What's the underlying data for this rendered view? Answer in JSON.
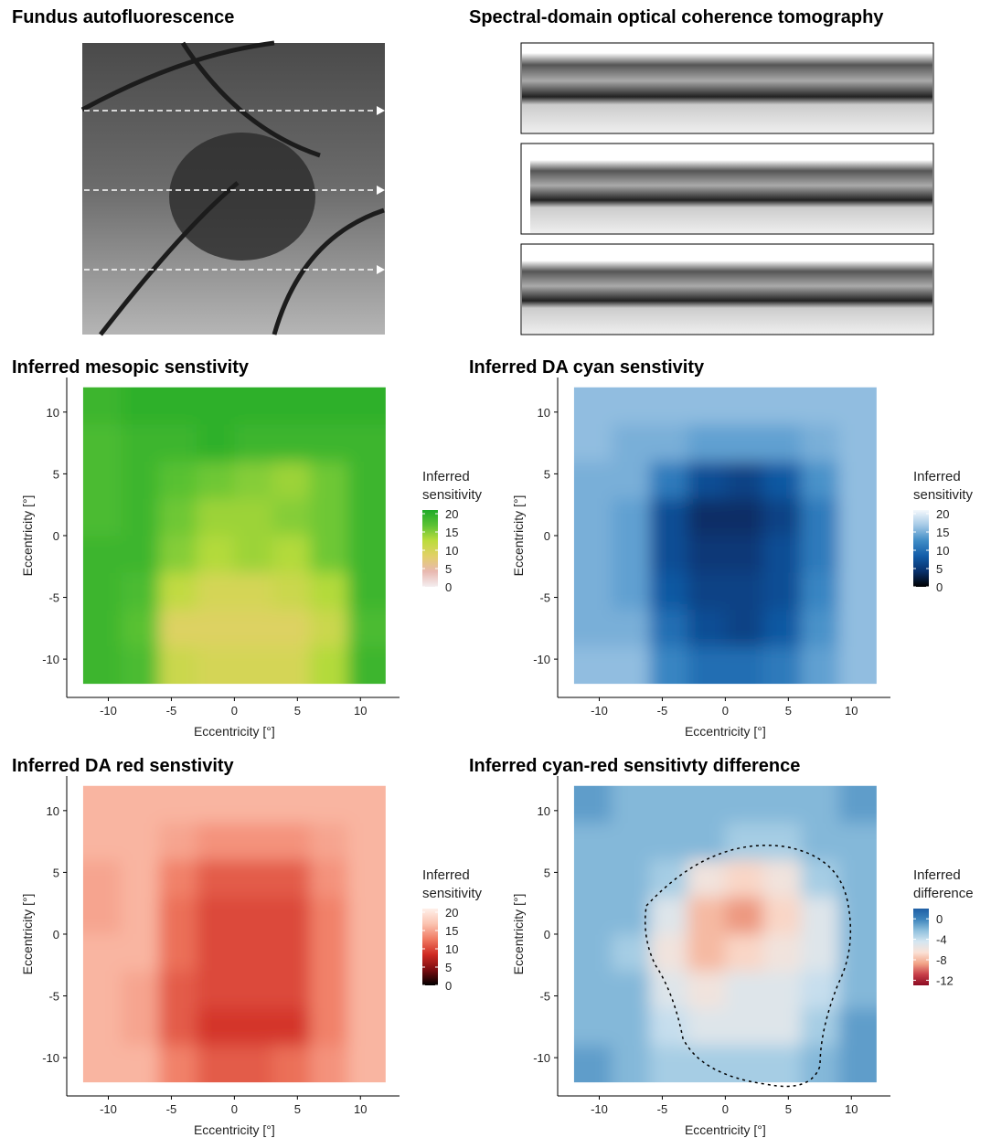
{
  "images": {
    "fundus_title": "Fundus autofluorescence",
    "oct_title": "Spectral-domain optical coherence tomography"
  },
  "chart_data": [
    {
      "type": "heatmap",
      "title": "Inferred mesopic senstivity",
      "xlabel": "Eccentricity [°]",
      "ylabel": "Eccentricity [°]",
      "xlim": [
        -13.3,
        13.1
      ],
      "ylim": [
        -13.1,
        12.8
      ],
      "xticks": [
        -10,
        -5,
        0,
        5,
        10
      ],
      "yticks": [
        -10,
        -5,
        0,
        5,
        10
      ],
      "x": [
        -10.5,
        -7.5,
        -4.5,
        -1.5,
        1.5,
        4.5,
        7.5,
        10.5
      ],
      "y": [
        10.5,
        7.5,
        4.5,
        1.5,
        -1.5,
        -4.5,
        -7.5,
        -10.5
      ],
      "z": [
        [
          19,
          20,
          20,
          20,
          20,
          20,
          20,
          20
        ],
        [
          18,
          19,
          19,
          20,
          19,
          19,
          19,
          19
        ],
        [
          18,
          19,
          17,
          16,
          15,
          14,
          16,
          19
        ],
        [
          18,
          19,
          16,
          14,
          14,
          15,
          16,
          19
        ],
        [
          19,
          19,
          15,
          13,
          14,
          13,
          16,
          19
        ],
        [
          19,
          18,
          12,
          10,
          10,
          11,
          13,
          19
        ],
        [
          19,
          17,
          9,
          9,
          9,
          9,
          11,
          18
        ],
        [
          19,
          18,
          11,
          10,
          10,
          10,
          13,
          19
        ]
      ],
      "legend_title": "Inferred sensitivity",
      "clim": [
        0,
        21
      ],
      "cticks": [
        0,
        5,
        10,
        15,
        20
      ],
      "colors": [
        "#f4eef0",
        "#e8b8b0",
        "#e2d068",
        "#bcdc3c",
        "#5cc234",
        "#1faa28"
      ]
    },
    {
      "type": "heatmap",
      "title": "Inferred DA cyan senstivity",
      "xlabel": "Eccentricity [°]",
      "ylabel": "Eccentricity [°]",
      "xlim": [
        -13.3,
        13.1
      ],
      "ylim": [
        -13.1,
        12.8
      ],
      "xticks": [
        -10,
        -5,
        0,
        5,
        10
      ],
      "yticks": [
        -10,
        -5,
        0,
        5,
        10
      ],
      "x": [
        -10.5,
        -7.5,
        -4.5,
        -1.5,
        1.5,
        4.5,
        7.5,
        10.5
      ],
      "y": [
        10.5,
        7.5,
        4.5,
        1.5,
        -1.5,
        -4.5,
        -7.5,
        -10.5
      ],
      "z": [
        [
          16,
          16,
          16,
          16,
          16,
          16,
          16,
          16
        ],
        [
          16,
          15,
          15,
          14,
          14,
          14,
          15,
          16
        ],
        [
          15,
          15,
          11,
          7,
          6,
          8,
          13,
          16
        ],
        [
          15,
          14,
          7,
          4,
          4,
          6,
          11,
          16
        ],
        [
          15,
          14,
          7,
          5,
          5,
          7,
          11,
          16
        ],
        [
          15,
          14,
          8,
          6,
          6,
          7,
          12,
          16
        ],
        [
          15,
          15,
          10,
          7,
          6,
          8,
          13,
          16
        ],
        [
          16,
          16,
          12,
          10,
          10,
          11,
          14,
          16
        ]
      ],
      "legend_title": "Inferred sensitivity",
      "clim": [
        0,
        21
      ],
      "cticks": [
        0,
        5,
        10,
        15,
        20
      ],
      "colors": [
        "#000000",
        "#08306b",
        "#125ca8",
        "#3f8cc6",
        "#a4c9e6",
        "#f4f8fc"
      ]
    },
    {
      "type": "heatmap",
      "title": "Inferred DA red senstivity",
      "xlabel": "Eccentricity [°]",
      "ylabel": "Eccentricity [°]",
      "xlim": [
        -13.3,
        13.1
      ],
      "ylim": [
        -13.1,
        12.8
      ],
      "xticks": [
        -10,
        -5,
        0,
        5,
        10
      ],
      "yticks": [
        -10,
        -5,
        0,
        5,
        10
      ],
      "x": [
        -10.5,
        -7.5,
        -4.5,
        -1.5,
        1.5,
        4.5,
        7.5,
        10.5
      ],
      "y": [
        10.5,
        7.5,
        4.5,
        1.5,
        -1.5,
        -4.5,
        -7.5,
        -10.5
      ],
      "z": [
        [
          16,
          16,
          16,
          16,
          16,
          16,
          16,
          16
        ],
        [
          16,
          16,
          15,
          14,
          14,
          14,
          15,
          16
        ],
        [
          15,
          16,
          13,
          11,
          11,
          11,
          14,
          16
        ],
        [
          15,
          16,
          12,
          10,
          10,
          10,
          13,
          16
        ],
        [
          16,
          16,
          12,
          10,
          10,
          10,
          13,
          16
        ],
        [
          16,
          15,
          11,
          10,
          10,
          10,
          13,
          16
        ],
        [
          16,
          15,
          11,
          9,
          9,
          9,
          13,
          16
        ],
        [
          16,
          16,
          13,
          11,
          11,
          12,
          14,
          16
        ]
      ],
      "legend_title": "Inferred sensitivity",
      "clim": [
        0,
        21
      ],
      "cticks": [
        0,
        5,
        10,
        15,
        20
      ],
      "colors": [
        "#000000",
        "#7a0c10",
        "#cf2a22",
        "#f07a62",
        "#fbc3b0",
        "#fff0ea"
      ]
    },
    {
      "type": "heatmap",
      "title": "Inferred cyan-red sensitivty difference",
      "xlabel": "Eccentricity [°]",
      "ylabel": "Eccentricity [°]",
      "xlim": [
        -13.3,
        13.1
      ],
      "ylim": [
        -13.1,
        12.8
      ],
      "xticks": [
        -10,
        -5,
        0,
        5,
        10
      ],
      "yticks": [
        -10,
        -5,
        0,
        5,
        10
      ],
      "x": [
        -10.5,
        -7.5,
        -4.5,
        -1.5,
        1.5,
        4.5,
        7.5,
        10.5
      ],
      "y": [
        10.5,
        7.5,
        4.5,
        1.5,
        -1.5,
        -4.5,
        -7.5,
        -10.5
      ],
      "z": [
        [
          -1,
          -2,
          -2,
          -2,
          -2,
          -2,
          -2,
          -1
        ],
        [
          -2,
          -2,
          -2,
          -2,
          -3,
          -3,
          -2,
          -2
        ],
        [
          -2,
          -2,
          -3,
          -6,
          -7,
          -6,
          -3,
          -2
        ],
        [
          -2,
          -2,
          -5,
          -8,
          -9,
          -7,
          -5,
          -2
        ],
        [
          -2,
          -3,
          -6,
          -8,
          -7,
          -6,
          -5,
          -2
        ],
        [
          -2,
          -2,
          -5,
          -6,
          -5,
          -5,
          -4,
          -2
        ],
        [
          -2,
          -2,
          -4,
          -5,
          -5,
          -5,
          -3,
          -1
        ],
        [
          -1,
          -2,
          -3,
          -3,
          -3,
          -3,
          -2,
          -1
        ]
      ],
      "legend_title": "Inferred difference",
      "clim": [
        -13,
        2
      ],
      "cticks": [
        -12,
        -8,
        -4,
        0
      ],
      "colors": [
        "#8b0a22",
        "#c9404a",
        "#f2a588",
        "#fbe2d6",
        "#d4e6f1",
        "#8fc0dd",
        "#3f86bd",
        "#1f5fa5"
      ]
    }
  ]
}
